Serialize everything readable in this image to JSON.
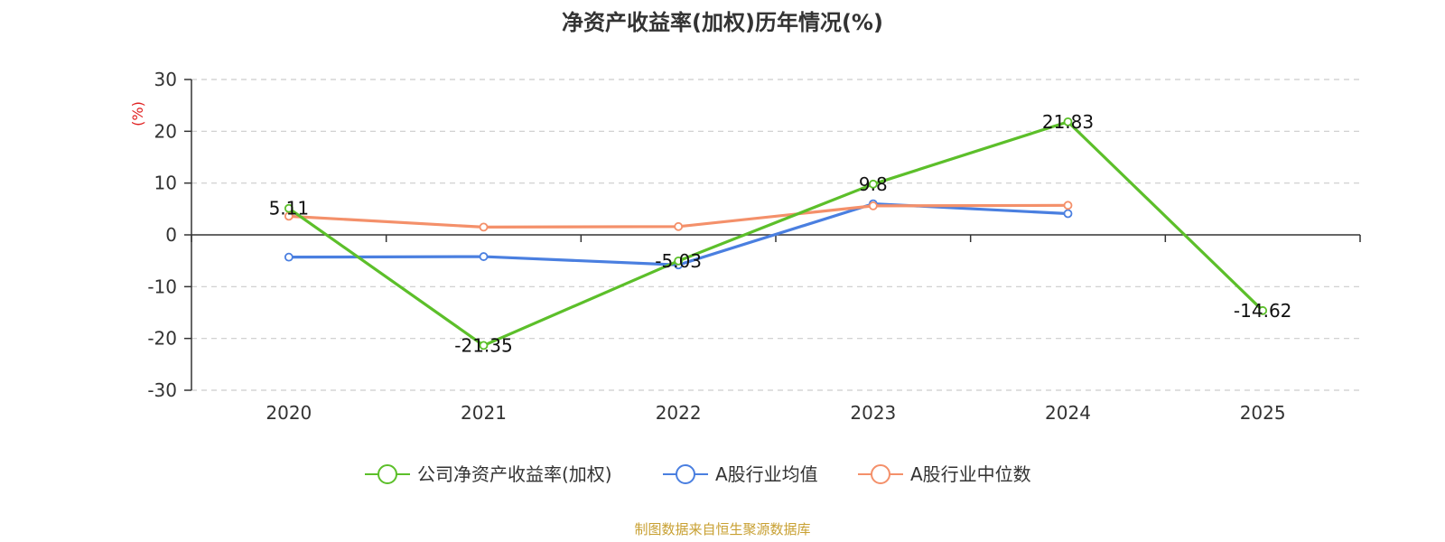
{
  "colors": {
    "series_company": "#5cbf2a",
    "series_avg": "#4a7fe0",
    "series_median": "#f4906a",
    "axis": "#333333",
    "grid": "#cccccc",
    "ylabel": "#e02020",
    "source": "#c8a032"
  },
  "chart_data": {
    "type": "line",
    "title": "净资产收益率(加权)历年情况(%)",
    "xlabel": "",
    "ylabel": "(%)",
    "categories": [
      "2020",
      "2021",
      "2022",
      "2023",
      "2024",
      "2025"
    ],
    "ylim": [
      -30,
      30
    ],
    "yticks": [
      30,
      20,
      10,
      0,
      -10,
      -20,
      -30
    ],
    "grid": true,
    "legend_position": "bottom",
    "series": [
      {
        "name": "公司净资产收益率(加权)",
        "values": [
          5.11,
          -21.35,
          -5.03,
          9.8,
          21.83,
          -14.62
        ],
        "labels": [
          "5.11",
          "-21.35",
          "-5.03",
          "9.8",
          "21.83",
          "-14.62"
        ]
      },
      {
        "name": "A股行业均值",
        "values": [
          -4.3,
          -4.2,
          -5.8,
          6.0,
          4.1,
          null
        ]
      },
      {
        "name": "A股行业中位数",
        "values": [
          3.6,
          1.5,
          1.6,
          5.6,
          5.7,
          null
        ]
      }
    ]
  },
  "source": "制图数据来自恒生聚源数据库"
}
